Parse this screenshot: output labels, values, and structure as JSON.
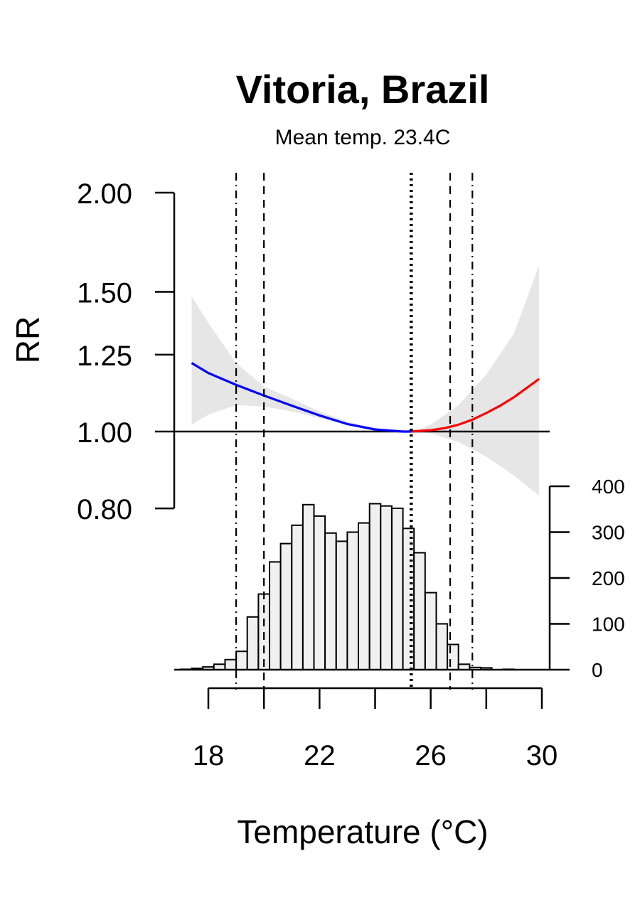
{
  "chart_data": {
    "type": "line",
    "title": "Vitoria, Brazil",
    "subtitle": "Mean temp. 23.4C",
    "xlabel": "Temperature (°C)",
    "ylabel": "RR",
    "x_range": [
      16.8,
      30.5
    ],
    "x_ticks": [
      18,
      22,
      26,
      30
    ],
    "x_tick_labels": [
      "18",
      "22",
      "26",
      "30"
    ],
    "y_left_ticks": [
      0.8,
      1.0,
      1.25,
      1.5,
      2.0
    ],
    "y_left_tick_labels": [
      "0.80",
      "1.00",
      "1.25",
      "1.50",
      "2.00"
    ],
    "y_right_ticks": [
      0,
      100,
      200,
      300,
      400
    ],
    "y_right_tick_labels": [
      "0",
      "100",
      "200",
      "300",
      "400"
    ],
    "reference_rr": 1.0,
    "mmt": 25.3,
    "vertical_lines": [
      {
        "x": 19.0,
        "style": "dotdash"
      },
      {
        "x": 20.0,
        "style": "dashed"
      },
      {
        "x": 25.3,
        "style": "dotted"
      },
      {
        "x": 26.7,
        "style": "dashed"
      },
      {
        "x": 27.5,
        "style": "dotdash"
      }
    ],
    "series": [
      {
        "color": "#0000ff",
        "x": [
          17.4,
          18.0,
          19.0,
          20.0,
          21.0,
          22.0,
          23.0,
          24.0,
          25.0,
          25.3
        ],
        "y": [
          1.22,
          1.185,
          1.145,
          1.11,
          1.078,
          1.048,
          1.022,
          1.006,
          1.0,
          1.0
        ]
      },
      {
        "color": "#ff0000",
        "x": [
          25.3,
          26.0,
          26.5,
          27.0,
          27.5,
          28.0,
          28.5,
          29.0,
          29.5,
          29.9
        ],
        "y": [
          1.0,
          1.004,
          1.01,
          1.02,
          1.035,
          1.055,
          1.078,
          1.105,
          1.138,
          1.165
        ]
      }
    ],
    "confidence_band": {
      "color": "#e6e6e6",
      "x": [
        17.4,
        18.0,
        19.0,
        20.0,
        21.0,
        22.0,
        23.0,
        24.0,
        25.0,
        25.3,
        26.0,
        27.0,
        28.0,
        29.0,
        29.9
      ],
      "lower": [
        1.02,
        1.05,
        1.08,
        1.075,
        1.06,
        1.04,
        1.02,
        1.005,
        1.0,
        1.0,
        0.995,
        0.97,
        0.93,
        0.88,
        0.83
      ],
      "upper": [
        1.48,
        1.37,
        1.22,
        1.14,
        1.1,
        1.06,
        1.03,
        1.01,
        1.0,
        1.0,
        1.02,
        1.08,
        1.18,
        1.33,
        1.62
      ]
    },
    "histogram": {
      "fill": "#f0f0f0",
      "bin_width": 0.4,
      "bin_start": 17.0,
      "counts": [
        1,
        3,
        6,
        12,
        22,
        40,
        115,
        165,
        235,
        275,
        315,
        360,
        335,
        298,
        280,
        300,
        320,
        362,
        357,
        352,
        308,
        255,
        168,
        100,
        55,
        12,
        5,
        4,
        0,
        1,
        0
      ]
    }
  }
}
